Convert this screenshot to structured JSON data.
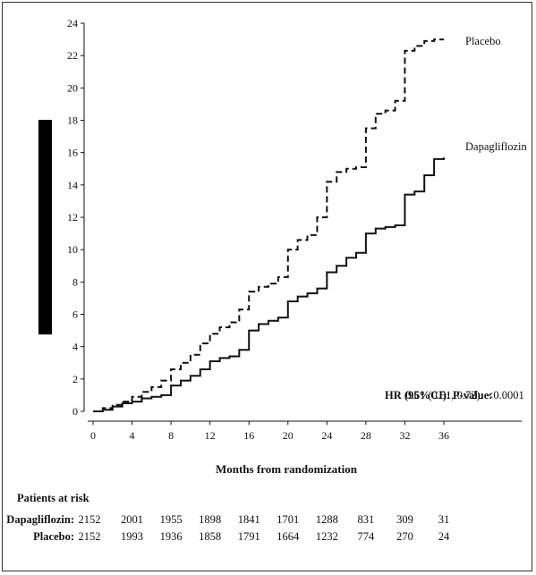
{
  "chart_data": {
    "type": "line",
    "title": "",
    "xlabel": "Months from randomization",
    "ylabel": "",
    "xlim": [
      0,
      36
    ],
    "ylim": [
      0,
      24
    ],
    "x_ticks": [
      "0",
      "4",
      "8",
      "12",
      "16",
      "20",
      "24",
      "28",
      "32",
      "36"
    ],
    "y_ticks": [
      "0",
      "2",
      "4",
      "6",
      "8",
      "10",
      "12",
      "14",
      "16",
      "18",
      "20",
      "22",
      "24"
    ],
    "series": [
      {
        "name": "Placebo",
        "style": "dashed",
        "color": "#111111",
        "points": [
          [
            0,
            0
          ],
          [
            1,
            0.2
          ],
          [
            2,
            0.4
          ],
          [
            3,
            0.6
          ],
          [
            4,
            0.9
          ],
          [
            5,
            1.2
          ],
          [
            6,
            1.5
          ],
          [
            7,
            1.9
          ],
          [
            8,
            2.6
          ],
          [
            9,
            3.0
          ],
          [
            10,
            3.5
          ],
          [
            11,
            4.2
          ],
          [
            12,
            4.8
          ],
          [
            13,
            5.2
          ],
          [
            14,
            5.5
          ],
          [
            15,
            6.3
          ],
          [
            16,
            7.4
          ],
          [
            17,
            7.7
          ],
          [
            18,
            7.9
          ],
          [
            19,
            8.3
          ],
          [
            20,
            10.0
          ],
          [
            21,
            10.6
          ],
          [
            22,
            10.9
          ],
          [
            23,
            12.0
          ],
          [
            24,
            14.2
          ],
          [
            25,
            14.8
          ],
          [
            26,
            15.0
          ],
          [
            27,
            15.1
          ],
          [
            28,
            17.5
          ],
          [
            29,
            18.4
          ],
          [
            30,
            18.6
          ],
          [
            31,
            19.2
          ],
          [
            32,
            22.3
          ],
          [
            33,
            22.6
          ],
          [
            34,
            22.9
          ],
          [
            35,
            23.0
          ],
          [
            36,
            23.0
          ]
        ]
      },
      {
        "name": "Dapagliflozin",
        "style": "solid",
        "color": "#111111",
        "points": [
          [
            0,
            0
          ],
          [
            1,
            0.1
          ],
          [
            2,
            0.3
          ],
          [
            3,
            0.5
          ],
          [
            4,
            0.6
          ],
          [
            5,
            0.8
          ],
          [
            6,
            0.9
          ],
          [
            7,
            1.0
          ],
          [
            8,
            1.6
          ],
          [
            9,
            1.9
          ],
          [
            10,
            2.2
          ],
          [
            11,
            2.6
          ],
          [
            12,
            3.1
          ],
          [
            13,
            3.3
          ],
          [
            14,
            3.4
          ],
          [
            15,
            3.8
          ],
          [
            16,
            5.0
          ],
          [
            17,
            5.4
          ],
          [
            18,
            5.6
          ],
          [
            19,
            5.8
          ],
          [
            20,
            6.8
          ],
          [
            21,
            7.1
          ],
          [
            22,
            7.3
          ],
          [
            23,
            7.6
          ],
          [
            24,
            8.6
          ],
          [
            25,
            9.0
          ],
          [
            26,
            9.5
          ],
          [
            27,
            9.8
          ],
          [
            28,
            11.0
          ],
          [
            29,
            11.3
          ],
          [
            30,
            11.4
          ],
          [
            31,
            11.5
          ],
          [
            32,
            13.4
          ],
          [
            33,
            13.6
          ],
          [
            34,
            14.6
          ],
          [
            35,
            15.6
          ],
          [
            36,
            15.7
          ]
        ]
      }
    ],
    "annotations": {
      "hr_label": "HR (95%CI):",
      "hr_value": "0.61 (0.51, 0.72)",
      "p_label": "P-value:",
      "p_value": "<0.0001"
    }
  },
  "risk_table": {
    "title": "Patients at risk",
    "rows": [
      {
        "label": "Dapagliflozin:",
        "values": [
          "2152",
          "2001",
          "1955",
          "1898",
          "1841",
          "1701",
          "1288",
          "831",
          "309",
          "31"
        ]
      },
      {
        "label": "Placebo:",
        "values": [
          "2152",
          "1993",
          "1936",
          "1858",
          "1791",
          "1664",
          "1232",
          "774",
          "270",
          "24"
        ]
      }
    ]
  },
  "colors": {
    "line": "#111111",
    "redaction_bar": "#000000"
  }
}
